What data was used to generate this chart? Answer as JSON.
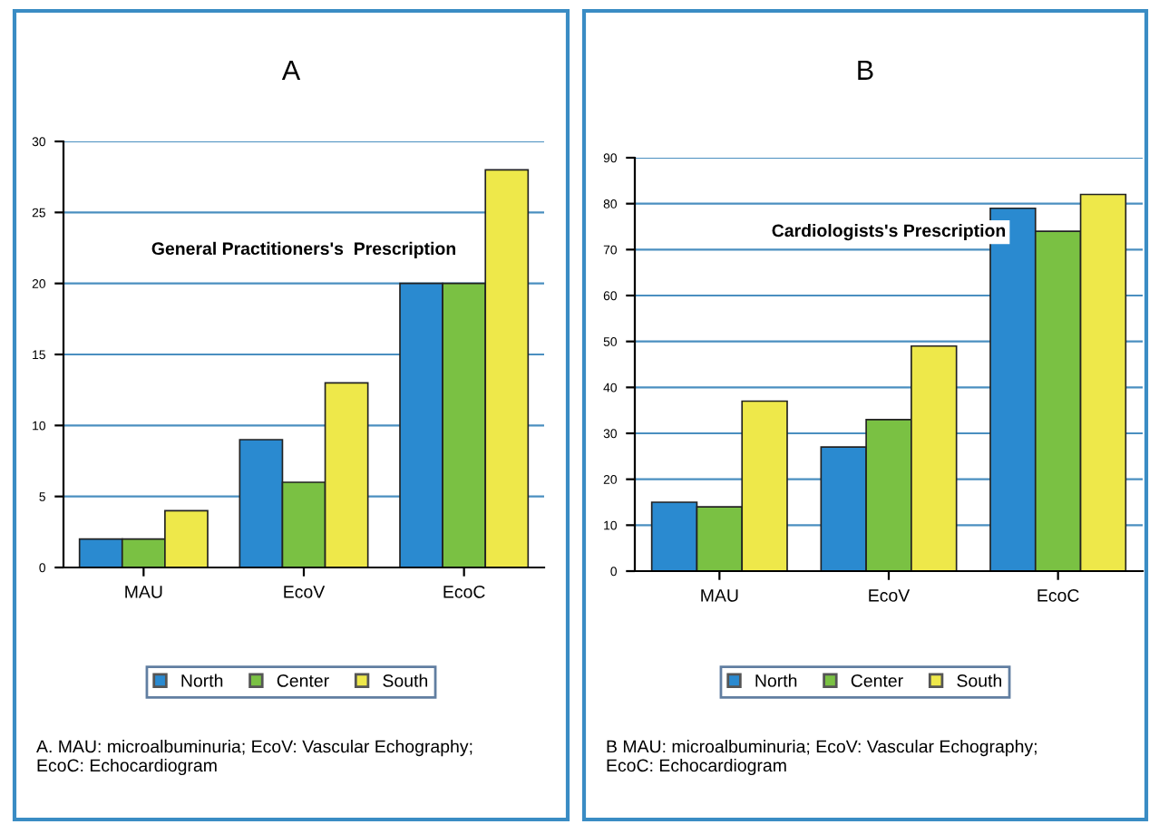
{
  "chart_data": [
    {
      "type": "bar",
      "title": "A",
      "subtitle": "General Practitioners's  Prescription",
      "categories": [
        "MAU",
        "EcoV",
        "EcoC"
      ],
      "series": [
        {
          "name": "North",
          "color": "#2a8ad0",
          "values": [
            2,
            9,
            20
          ]
        },
        {
          "name": "Center",
          "color": "#7ac143",
          "values": [
            2,
            6,
            20
          ]
        },
        {
          "name": "South",
          "color": "#eee84a",
          "values": [
            4,
            13,
            28
          ]
        }
      ],
      "ylim": [
        0,
        30
      ],
      "yticks": [
        0,
        5,
        10,
        15,
        20,
        25,
        30
      ],
      "grid": "y",
      "legend": "bottom",
      "annotations": [
        "A. MAU: microalbuminuria; EcoV: Vascular Echography;\nEcoC: Echocardiogram"
      ]
    },
    {
      "type": "bar",
      "title": "B",
      "subtitle": "Cardiologists's Prescription",
      "categories": [
        "MAU",
        "EcoV",
        "EcoC"
      ],
      "series": [
        {
          "name": "North",
          "color": "#2a8ad0",
          "values": [
            15,
            27,
            79
          ]
        },
        {
          "name": "Center",
          "color": "#7ac143",
          "values": [
            14,
            33,
            74
          ]
        },
        {
          "name": "South",
          "color": "#eee84a",
          "values": [
            37,
            49,
            82
          ]
        }
      ],
      "ylim": [
        0,
        90
      ],
      "yticks": [
        0,
        10,
        20,
        30,
        40,
        50,
        60,
        70,
        80,
        90
      ],
      "grid": "y",
      "legend": "bottom",
      "annotations": [
        "B MAU: microalbuminuria; EcoV: Vascular Echography;\nEcoC: Echocardiogram"
      ]
    }
  ]
}
